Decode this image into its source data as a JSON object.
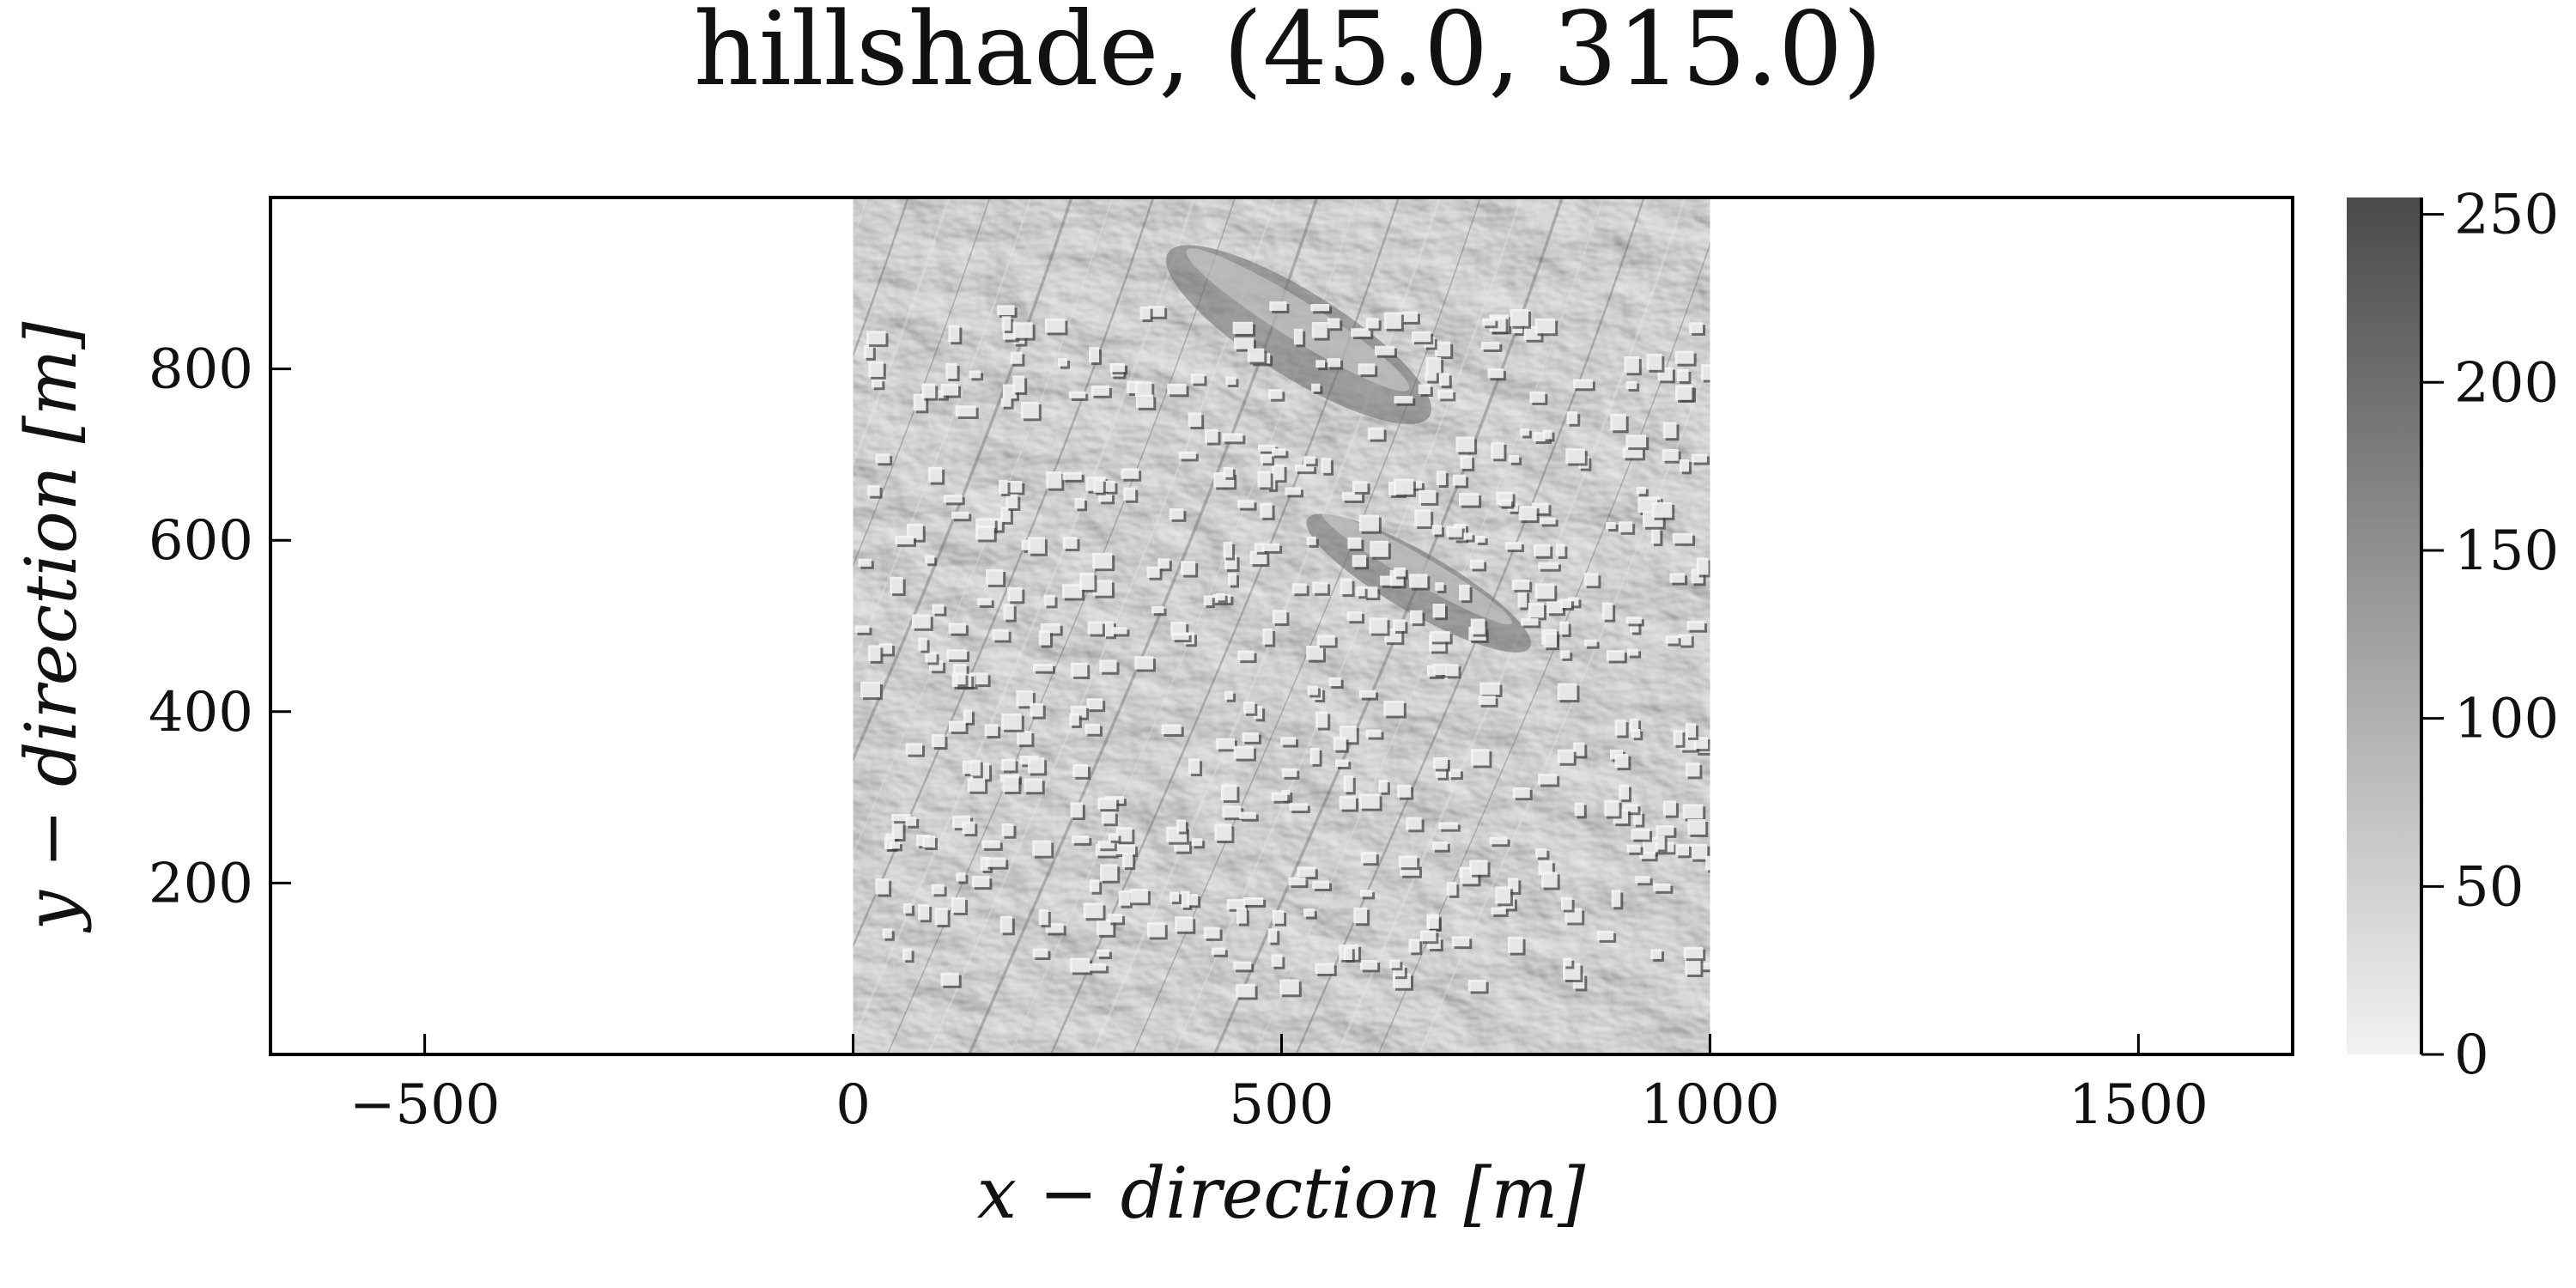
{
  "chart_data": {
    "type": "heatmap",
    "title": "hillshade, (45.0, 315.0)",
    "xlabel": "x − direction [m]",
    "ylabel": "y − direction [m]",
    "xlim": [
      -680,
      1680
    ],
    "ylim": [
      0,
      1000
    ],
    "xticks": [
      -500,
      0,
      500,
      1000,
      1500
    ],
    "xtick_labels": [
      "−500",
      "0",
      "500",
      "1000",
      "1500"
    ],
    "yticks": [
      200,
      400,
      600,
      800
    ],
    "ytick_labels": [
      "200",
      "400",
      "600",
      "800"
    ],
    "image_extent": {
      "x": [
        0,
        1000
      ],
      "y": [
        0,
        1000
      ]
    },
    "colormap": "grays",
    "colorbar": {
      "range": [
        0,
        255
      ],
      "ticks": [
        0,
        50,
        100,
        150,
        200,
        250
      ],
      "tick_labels": [
        "0",
        "50",
        "100",
        "150",
        "200",
        "250"
      ],
      "color_low": "#f2f2f2",
      "color_high": "#4a4a4a"
    },
    "legend": "none",
    "grid": false
  }
}
